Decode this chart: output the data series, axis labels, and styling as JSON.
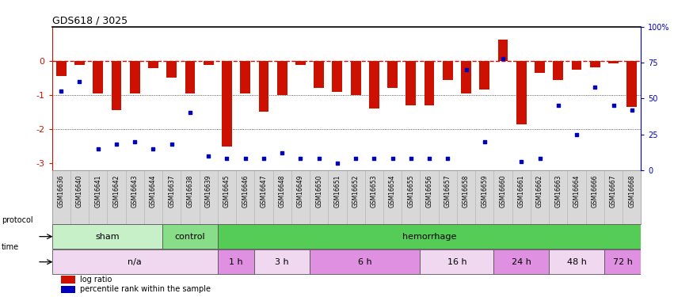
{
  "title": "GDS618 / 3025",
  "samples": [
    "GSM16636",
    "GSM16640",
    "GSM16641",
    "GSM16642",
    "GSM16643",
    "GSM16644",
    "GSM16637",
    "GSM16638",
    "GSM16639",
    "GSM16645",
    "GSM16646",
    "GSM16647",
    "GSM16648",
    "GSM16649",
    "GSM16650",
    "GSM16651",
    "GSM16652",
    "GSM16653",
    "GSM16654",
    "GSM16655",
    "GSM16656",
    "GSM16657",
    "GSM16658",
    "GSM16659",
    "GSM16660",
    "GSM16661",
    "GSM16662",
    "GSM16663",
    "GSM16664",
    "GSM16666",
    "GSM16667",
    "GSM16668"
  ],
  "log_ratio": [
    -0.45,
    -0.12,
    -0.95,
    -1.45,
    -0.95,
    -0.22,
    -0.5,
    -0.95,
    -0.12,
    -2.5,
    -0.95,
    -1.5,
    -1.0,
    -0.12,
    -0.8,
    -0.9,
    -1.0,
    -1.4,
    -0.8,
    -1.3,
    -1.3,
    -0.55,
    -0.95,
    -0.85,
    0.62,
    -1.85,
    -0.35,
    -0.55,
    -0.25,
    -0.2,
    -0.08,
    -1.35
  ],
  "percentile": [
    55,
    62,
    15,
    18,
    20,
    15,
    18,
    40,
    10,
    8,
    8,
    8,
    12,
    8,
    8,
    5,
    8,
    8,
    8,
    8,
    8,
    8,
    70,
    20,
    78,
    6,
    8,
    45,
    25,
    58,
    45,
    42
  ],
  "protocol_groups": [
    {
      "label": "sham",
      "start": 0,
      "end": 5,
      "color": "#c8f0c8"
    },
    {
      "label": "control",
      "start": 6,
      "end": 8,
      "color": "#88dd88"
    },
    {
      "label": "hemorrhage",
      "start": 9,
      "end": 31,
      "color": "#55cc55"
    }
  ],
  "time_groups": [
    {
      "label": "n/a",
      "start": 0,
      "end": 8,
      "color": "#f0d8f0"
    },
    {
      "label": "1 h",
      "start": 9,
      "end": 10,
      "color": "#e090e0"
    },
    {
      "label": "3 h",
      "start": 11,
      "end": 13,
      "color": "#f0d8f0"
    },
    {
      "label": "6 h",
      "start": 14,
      "end": 19,
      "color": "#e090e0"
    },
    {
      "label": "16 h",
      "start": 20,
      "end": 23,
      "color": "#f0d8f0"
    },
    {
      "label": "24 h",
      "start": 24,
      "end": 26,
      "color": "#e090e0"
    },
    {
      "label": "48 h",
      "start": 27,
      "end": 29,
      "color": "#f0d8f0"
    },
    {
      "label": "72 h",
      "start": 30,
      "end": 31,
      "color": "#e090e0"
    }
  ],
  "ylim": [
    -3.2,
    1.0
  ],
  "yticks_left": [
    -3,
    -2,
    -1,
    0
  ],
  "yticks_right": [
    0,
    25,
    50,
    75,
    100
  ],
  "bar_color": "#cc1100",
  "dot_color": "#0000bb",
  "ref_line_color": "#cc1100",
  "grid_line_color": "#222222",
  "bg_color": "#ffffff",
  "bar_width": 0.55,
  "label_bg_color": "#d8d8d8"
}
